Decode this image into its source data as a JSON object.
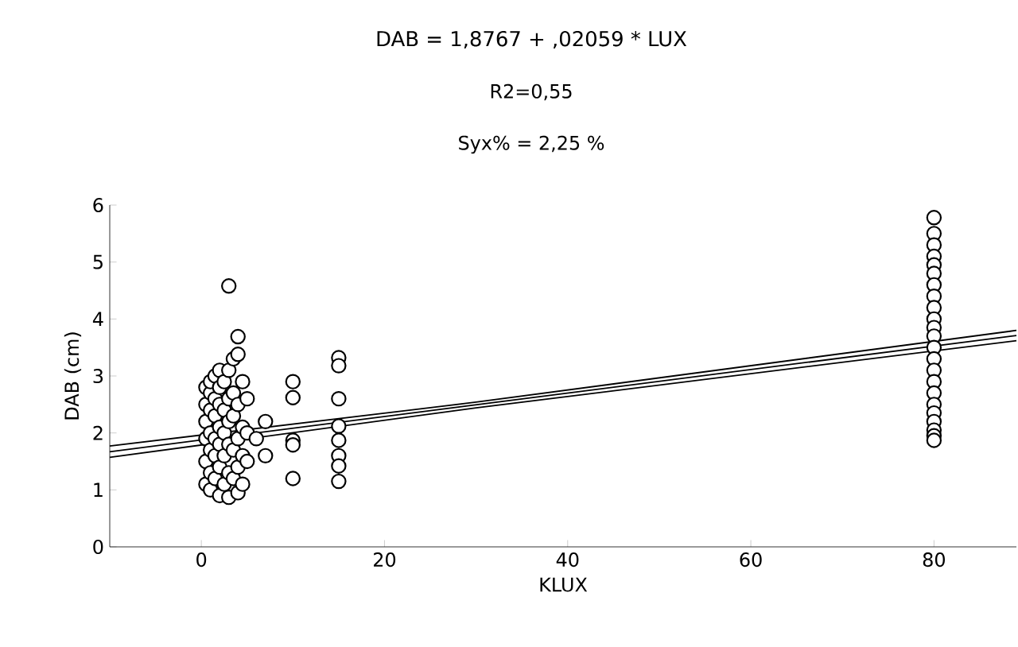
{
  "chart_data": {
    "type": "scatter",
    "title": "DAB = 1,8767 + ,02059 * LUX",
    "subtitle": "R2=0,55",
    "annotations": [
      "Syx% = 2,25 %"
    ],
    "xlabel": "KLUX",
    "ylabel": "DAB (cm)",
    "xlim": [
      -10,
      89
    ],
    "ylim": [
      0,
      6
    ],
    "xticks": [
      0,
      20,
      40,
      60,
      80
    ],
    "yticks": [
      0,
      1,
      2,
      3,
      4,
      5,
      6
    ],
    "grid": false,
    "series": [
      {
        "marker": "circle",
        "color": "#000000",
        "x": [
          0.5,
          0.5,
          0.5,
          0.5,
          0.5,
          0.5,
          1,
          1,
          1,
          1,
          1,
          1,
          1,
          1.5,
          1.5,
          1.5,
          1.5,
          1.5,
          1.5,
          2,
          2,
          2,
          2,
          2,
          2,
          2,
          2.5,
          2.5,
          2.5,
          2.5,
          2.5,
          3,
          3,
          3,
          3,
          3,
          3,
          3,
          3.5,
          3.5,
          3.5,
          3.5,
          3.5,
          4,
          4,
          4,
          4,
          4,
          4,
          4.5,
          4.5,
          4.5,
          4.5,
          5,
          5,
          5,
          6,
          7,
          7,
          10,
          10,
          10,
          10,
          10,
          15,
          15,
          15,
          15,
          15,
          15,
          15,
          15,
          80,
          80,
          80,
          80,
          80,
          80,
          80,
          80,
          80,
          80,
          80,
          80,
          80,
          80,
          80,
          80,
          80,
          80,
          80,
          80,
          80,
          80,
          80
        ],
        "values": [
          1.1,
          1.5,
          1.9,
          2.2,
          2.5,
          2.8,
          1.0,
          1.3,
          1.7,
          2.0,
          2.4,
          2.7,
          2.9,
          1.2,
          1.6,
          1.9,
          2.3,
          2.6,
          3.0,
          0.9,
          1.4,
          1.8,
          2.1,
          2.5,
          2.8,
          3.1,
          1.1,
          1.6,
          2.0,
          2.4,
          2.9,
          0.87,
          1.3,
          1.8,
          2.2,
          2.6,
          3.1,
          4.58,
          1.2,
          1.7,
          2.3,
          2.7,
          3.3,
          0.95,
          1.4,
          1.9,
          2.5,
          3.38,
          3.69,
          1.1,
          1.6,
          2.1,
          2.9,
          1.5,
          2.0,
          2.6,
          1.9,
          1.6,
          2.2,
          2.9,
          2.62,
          1.87,
          1.79,
          1.2,
          3.32,
          3.18,
          2.6,
          2.12,
          1.87,
          1.6,
          1.42,
          1.15,
          5.78,
          5.5,
          5.3,
          5.1,
          4.95,
          4.8,
          4.6,
          4.4,
          4.2,
          4.0,
          3.85,
          3.7,
          3.5,
          3.3,
          3.1,
          2.9,
          2.7,
          2.5,
          2.35,
          2.2,
          2.05,
          1.95,
          1.87
        ]
      },
      {
        "type": "line",
        "color": "#000000",
        "x": [
          -10,
          89
        ],
        "values": [
          1.67,
          3.71
        ]
      },
      {
        "type": "line",
        "color": "#000000",
        "x": [
          -10,
          30,
          89
        ],
        "values": [
          1.57,
          2.44,
          3.62
        ]
      },
      {
        "type": "line",
        "color": "#000000",
        "x": [
          -10,
          30,
          89
        ],
        "values": [
          1.77,
          2.54,
          3.8
        ]
      }
    ]
  }
}
